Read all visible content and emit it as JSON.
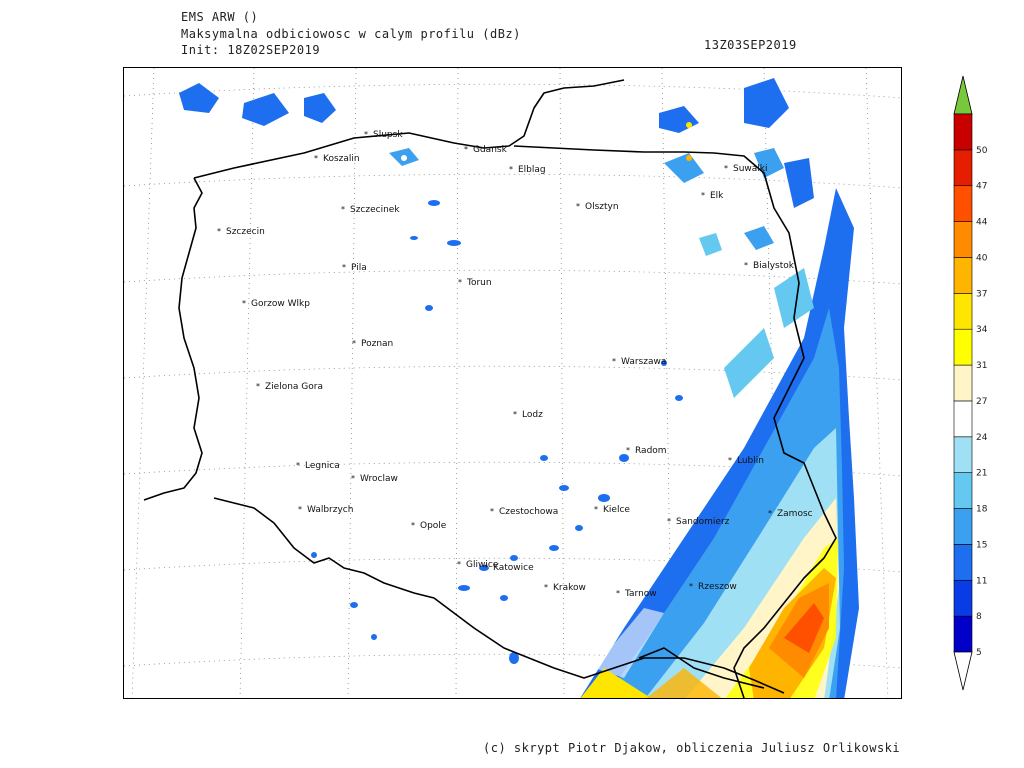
{
  "header": {
    "model": "EMS ARW ()",
    "field": "Maksymalna odbiciowosc w calym profilu (dBz)",
    "init": "Init: 18Z02SEP2019",
    "valid": "13Z03SEP2019"
  },
  "footer": {
    "credits": "(c) skrypt Piotr Djakow, obliczenia Juliusz Orlikowski"
  },
  "map": {
    "cities": [
      {
        "name": "Slupsk"
      },
      {
        "name": "Koszalin"
      },
      {
        "name": "Gdansk"
      },
      {
        "name": "Elblag"
      },
      {
        "name": "Suwalki"
      },
      {
        "name": "Elk"
      },
      {
        "name": "Olsztyn"
      },
      {
        "name": "Szczecinek"
      },
      {
        "name": "Szczecin"
      },
      {
        "name": "Pila"
      },
      {
        "name": "Torun"
      },
      {
        "name": "Bialystok"
      },
      {
        "name": "Gorzow Wlkp"
      },
      {
        "name": "Poznan"
      },
      {
        "name": "Warszawa"
      },
      {
        "name": "Zielona Gora"
      },
      {
        "name": "Lodz"
      },
      {
        "name": "Radom"
      },
      {
        "name": "Legnica"
      },
      {
        "name": "Wroclaw"
      },
      {
        "name": "Lublin"
      },
      {
        "name": "Walbrzych"
      },
      {
        "name": "Opole"
      },
      {
        "name": "Czestochowa"
      },
      {
        "name": "Kielce"
      },
      {
        "name": "Sandomierz"
      },
      {
        "name": "Zamosc"
      },
      {
        "name": "Gliwice"
      },
      {
        "name": "Katowice"
      },
      {
        "name": "Krakow"
      },
      {
        "name": "Tarnow"
      },
      {
        "name": "Rzeszow"
      }
    ]
  },
  "colorbar": {
    "unit": "dBz",
    "levels": [
      "5",
      "8",
      "11",
      "15",
      "18",
      "21",
      "24",
      "27",
      "31",
      "34",
      "37",
      "40",
      "44",
      "47",
      "50"
    ],
    "colors": [
      "#0000c8",
      "#0a3ce6",
      "#1e6ef0",
      "#3ca0f0",
      "#64c8f0",
      "#a0e0f5",
      "#ffffff",
      "#fff5c8",
      "#ffff00",
      "#ffe600",
      "#ffb400",
      "#ff8c00",
      "#ff5000",
      "#e61e00",
      "#c80000"
    ],
    "over_color": "#78c83c",
    "under_color": "#ffffff"
  }
}
